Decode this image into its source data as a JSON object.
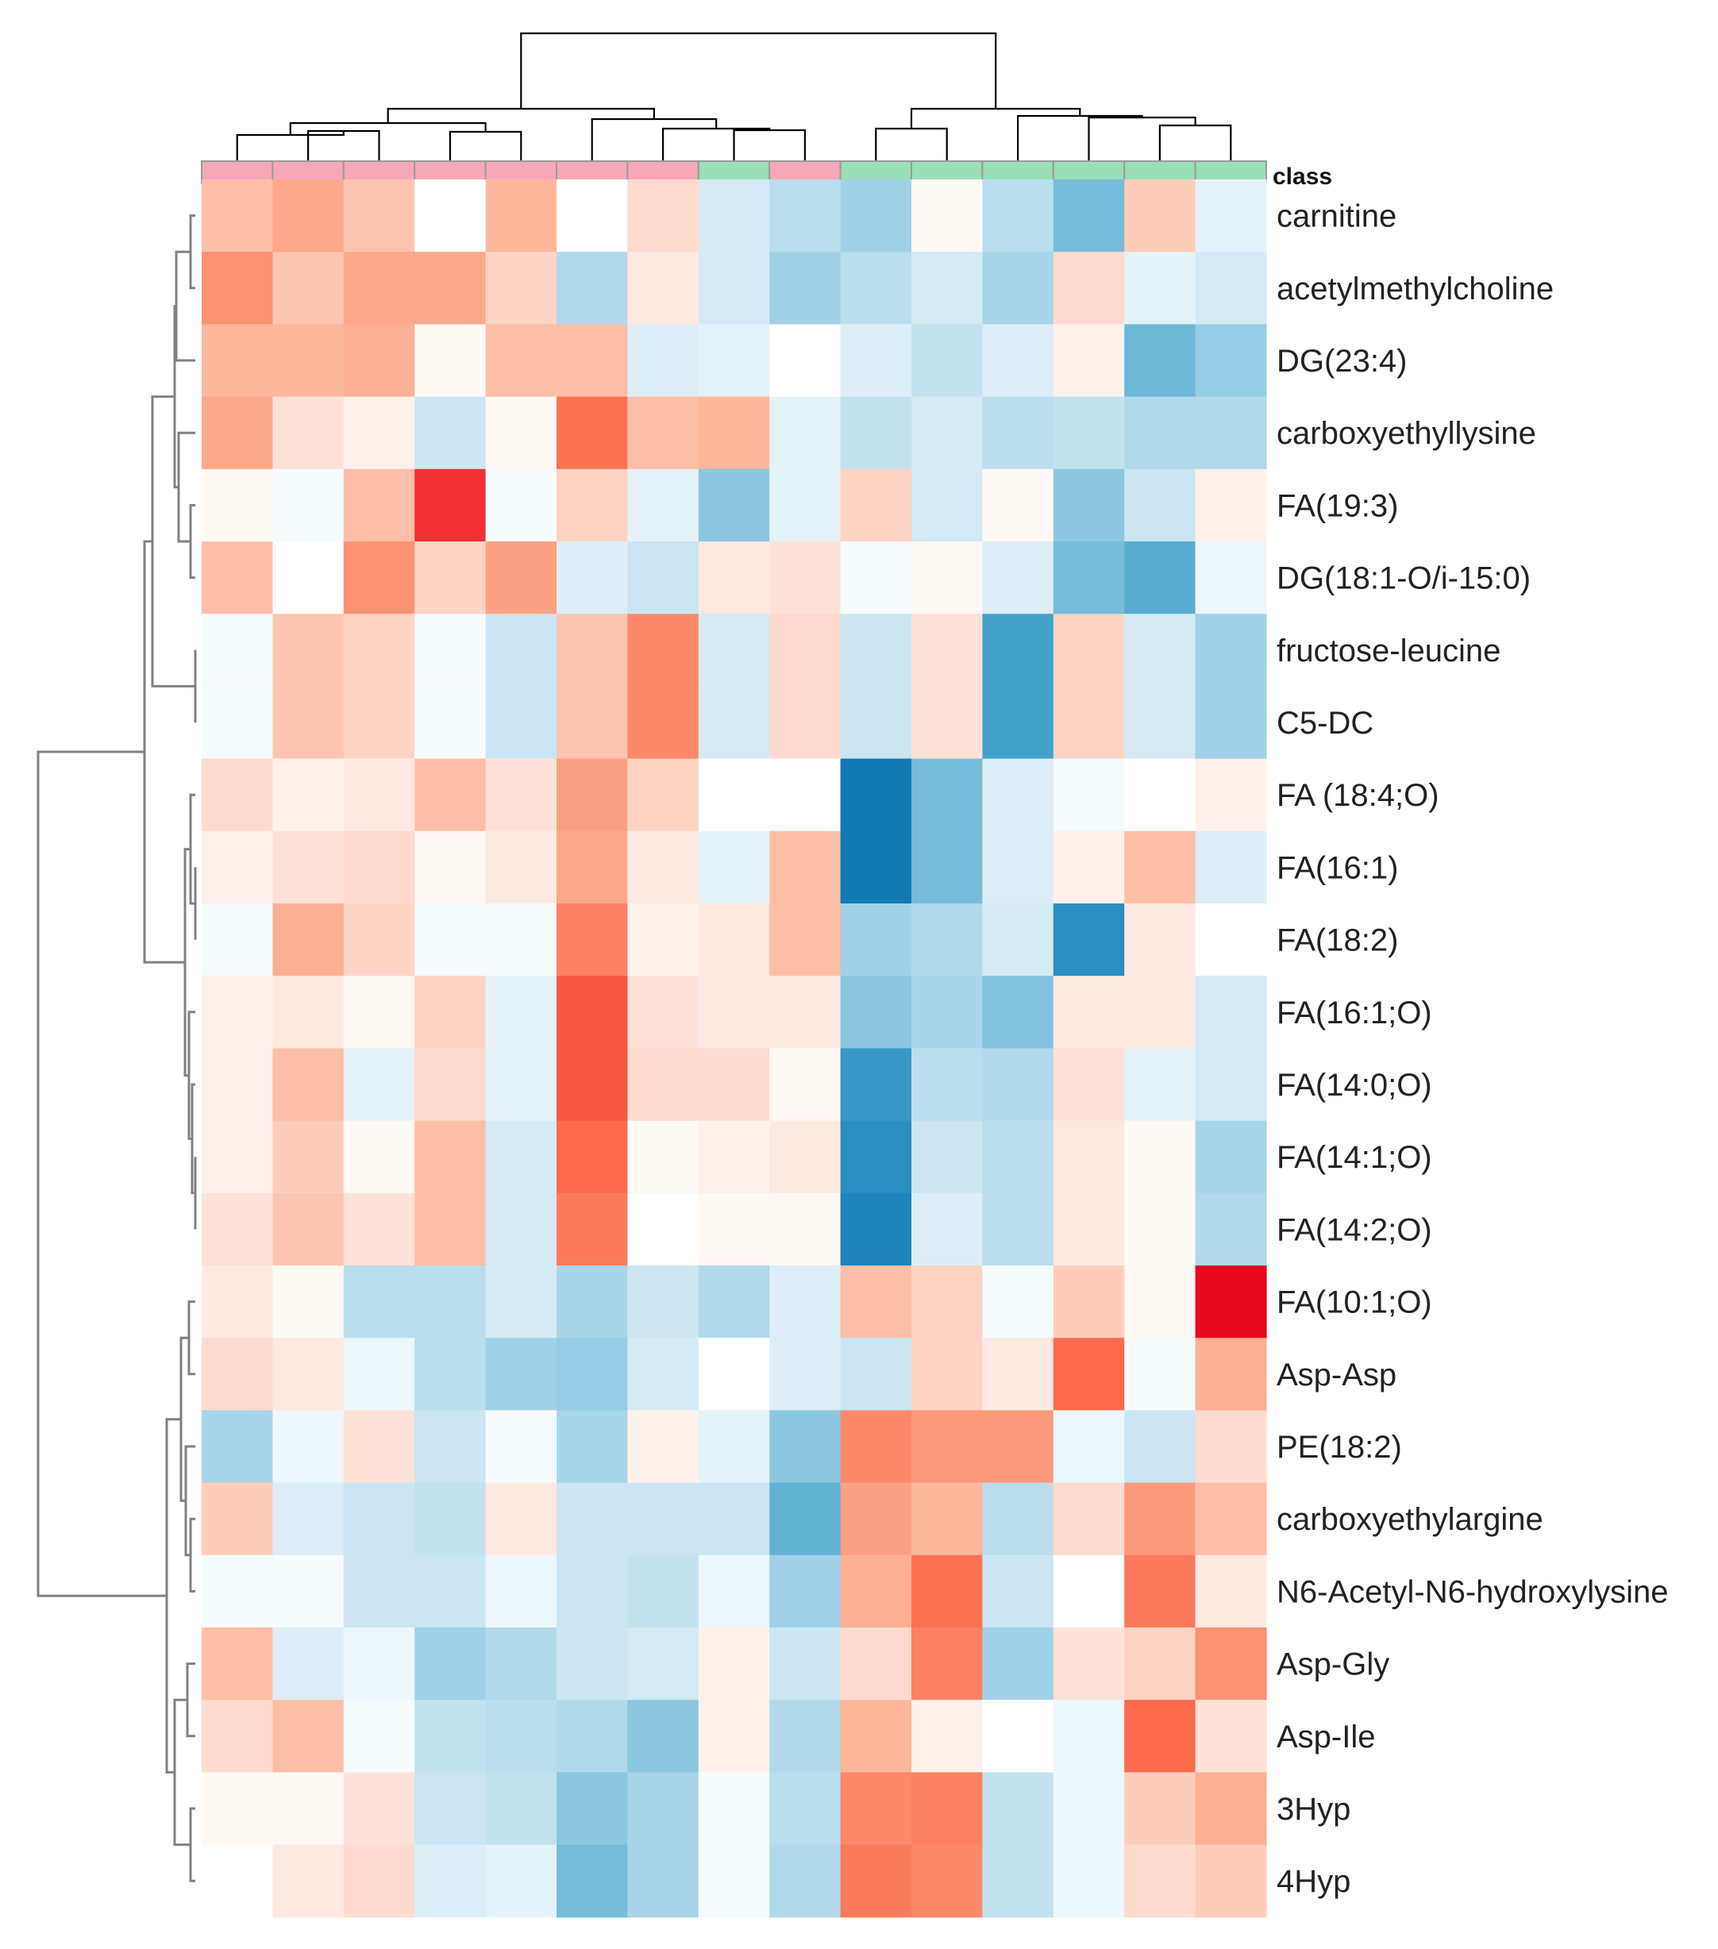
{
  "chart_data": {
    "type": "heatmap",
    "title": "",
    "color_scale": {
      "low": "#0570b0",
      "mid": "#ffffff",
      "high": "#e8091e",
      "range": [
        -2.5,
        2.5
      ]
    },
    "annotation": {
      "label": "class",
      "groups": {
        "A": "#f7a8b8",
        "B": "#99dfb7"
      },
      "columns": [
        "A",
        "A",
        "A",
        "A",
        "A",
        "A",
        "A",
        "B",
        "A",
        "B",
        "B",
        "B",
        "B",
        "B",
        "B"
      ]
    },
    "column_count": 15,
    "rows": [
      "carnitine",
      "acetylmethylcholine",
      "DG(23:4)",
      "carboxyethyllysine",
      "FA(19:3)",
      "DG(18:1-O/i-15:0)",
      "fructose-leucine",
      "C5-DC",
      "FA (18:4;O)",
      "FA(16:1)",
      "FA(18:2)",
      "FA(16:1;O)",
      "FA(14:0;O)",
      "FA(14:1;O)",
      "FA(14:2;O)",
      "FA(10:1;O)",
      "Asp-Asp",
      "PE(18:2)",
      "carboxyethylargine",
      "N6-Acetyl-N6-hydroxylysine",
      "Asp-Gly",
      "Asp-Ile",
      "3Hyp",
      "4Hyp"
    ],
    "values": [
      [
        0.9,
        1.2,
        0.8,
        0.0,
        1.0,
        0.0,
        0.5,
        -0.5,
        -0.8,
        -1.1,
        0.1,
        -0.8,
        -1.5,
        0.7,
        -0.3
      ],
      [
        1.5,
        0.8,
        1.2,
        1.2,
        0.6,
        -0.9,
        0.3,
        -0.5,
        -1.1,
        -0.8,
        -0.5,
        -1.0,
        0.5,
        -0.3,
        -0.5
      ],
      [
        1.0,
        1.0,
        1.1,
        0.1,
        0.9,
        0.9,
        -0.4,
        -0.3,
        0.0,
        -0.4,
        -0.7,
        -0.4,
        0.2,
        -1.6,
        -1.2
      ],
      [
        1.2,
        0.4,
        0.2,
        -0.6,
        0.1,
        1.9,
        0.9,
        1.0,
        -0.3,
        -0.7,
        -0.5,
        -0.8,
        -0.7,
        -0.9,
        -0.9
      ],
      [
        0.1,
        -0.1,
        0.9,
        2.3,
        -0.1,
        0.6,
        -0.3,
        -1.3,
        -0.3,
        0.6,
        -0.5,
        0.1,
        -1.3,
        -0.6,
        0.2
      ],
      [
        0.9,
        0.0,
        1.5,
        0.6,
        1.3,
        -0.4,
        -0.6,
        0.3,
        0.4,
        -0.1,
        0.1,
        -0.4,
        -1.5,
        -1.8,
        -0.2
      ],
      [
        -0.1,
        0.8,
        0.6,
        -0.1,
        -0.6,
        0.8,
        1.6,
        -0.5,
        0.5,
        -0.6,
        0.4,
        -2.0,
        0.6,
        -0.5,
        -1.1
      ],
      [
        -0.1,
        0.8,
        0.6,
        -0.1,
        -0.6,
        0.8,
        1.6,
        -0.5,
        0.5,
        -0.6,
        0.4,
        -2.0,
        0.6,
        -0.5,
        -1.1
      ],
      [
        0.5,
        0.2,
        0.3,
        0.9,
        0.4,
        1.3,
        0.6,
        0.0,
        0.0,
        -2.4,
        -1.5,
        -0.4,
        -0.1,
        0.0,
        0.2
      ],
      [
        0.2,
        0.4,
        0.5,
        0.1,
        0.3,
        1.2,
        0.3,
        -0.3,
        0.9,
        -2.4,
        -1.5,
        -0.4,
        0.2,
        0.9,
        -0.4
      ],
      [
        -0.1,
        1.1,
        0.6,
        -0.1,
        -0.1,
        1.7,
        0.2,
        0.3,
        0.9,
        -1.1,
        -0.9,
        -0.5,
        -2.2,
        0.3,
        0.0
      ],
      [
        0.2,
        0.3,
        0.1,
        0.6,
        -0.3,
        2.1,
        0.4,
        0.3,
        0.3,
        -1.3,
        -1.0,
        -1.4,
        0.3,
        0.3,
        -0.5
      ],
      [
        0.2,
        0.9,
        -0.3,
        0.5,
        -0.3,
        2.1,
        0.5,
        0.5,
        0.1,
        -2.1,
        -0.8,
        -0.9,
        0.4,
        -0.3,
        -0.5
      ],
      [
        0.2,
        0.7,
        0.1,
        0.9,
        -0.5,
        2.0,
        0.1,
        0.2,
        0.3,
        -2.2,
        -0.6,
        -0.8,
        0.3,
        0.1,
        -1.0
      ],
      [
        0.4,
        0.8,
        0.4,
        0.9,
        -0.5,
        1.8,
        0.0,
        0.1,
        0.1,
        -2.3,
        -0.4,
        -0.8,
        0.3,
        0.1,
        -0.9
      ],
      [
        0.3,
        0.1,
        -0.8,
        -0.8,
        -0.5,
        -1.0,
        -0.6,
        -0.9,
        -0.4,
        0.9,
        0.6,
        -0.1,
        0.7,
        0.1,
        2.5
      ],
      [
        0.5,
        0.3,
        -0.2,
        -0.8,
        -1.1,
        -1.2,
        -0.5,
        0.0,
        -0.4,
        -0.6,
        0.6,
        0.3,
        2.0,
        -0.1,
        1.1
      ],
      [
        -1.0,
        -0.2,
        0.4,
        -0.6,
        -0.1,
        -1.0,
        0.2,
        -0.3,
        -1.3,
        1.6,
        1.4,
        1.4,
        -0.2,
        -0.6,
        0.5
      ],
      [
        0.7,
        -0.4,
        -0.6,
        -0.7,
        0.3,
        -0.6,
        -0.6,
        -0.6,
        -1.7,
        1.3,
        1.0,
        -0.8,
        0.5,
        1.4,
        0.9
      ],
      [
        -0.1,
        -0.1,
        -0.6,
        -0.6,
        -0.2,
        -0.6,
        -0.7,
        -0.2,
        -1.1,
        1.1,
        1.9,
        -0.6,
        0.0,
        1.8,
        0.3
      ],
      [
        0.9,
        -0.4,
        -0.2,
        -1.1,
        -0.9,
        -0.6,
        -0.5,
        0.2,
        -0.6,
        0.5,
        1.7,
        -1.1,
        0.4,
        0.6,
        1.5
      ],
      [
        0.5,
        0.9,
        -0.1,
        -0.7,
        -0.8,
        -0.9,
        -1.3,
        0.2,
        -0.9,
        1.0,
        0.2,
        0.0,
        -0.2,
        2.0,
        0.4
      ],
      [
        0.1,
        0.1,
        0.4,
        -0.6,
        -0.7,
        -1.3,
        -1.0,
        -0.1,
        -0.8,
        1.6,
        1.7,
        -0.7,
        -0.2,
        0.7,
        1.1
      ],
      [
        0.0,
        0.3,
        0.5,
        -0.4,
        -0.3,
        -1.5,
        -1.0,
        -0.1,
        -0.9,
        1.8,
        1.6,
        -0.7,
        -0.2,
        0.5,
        0.7
      ]
    ]
  }
}
